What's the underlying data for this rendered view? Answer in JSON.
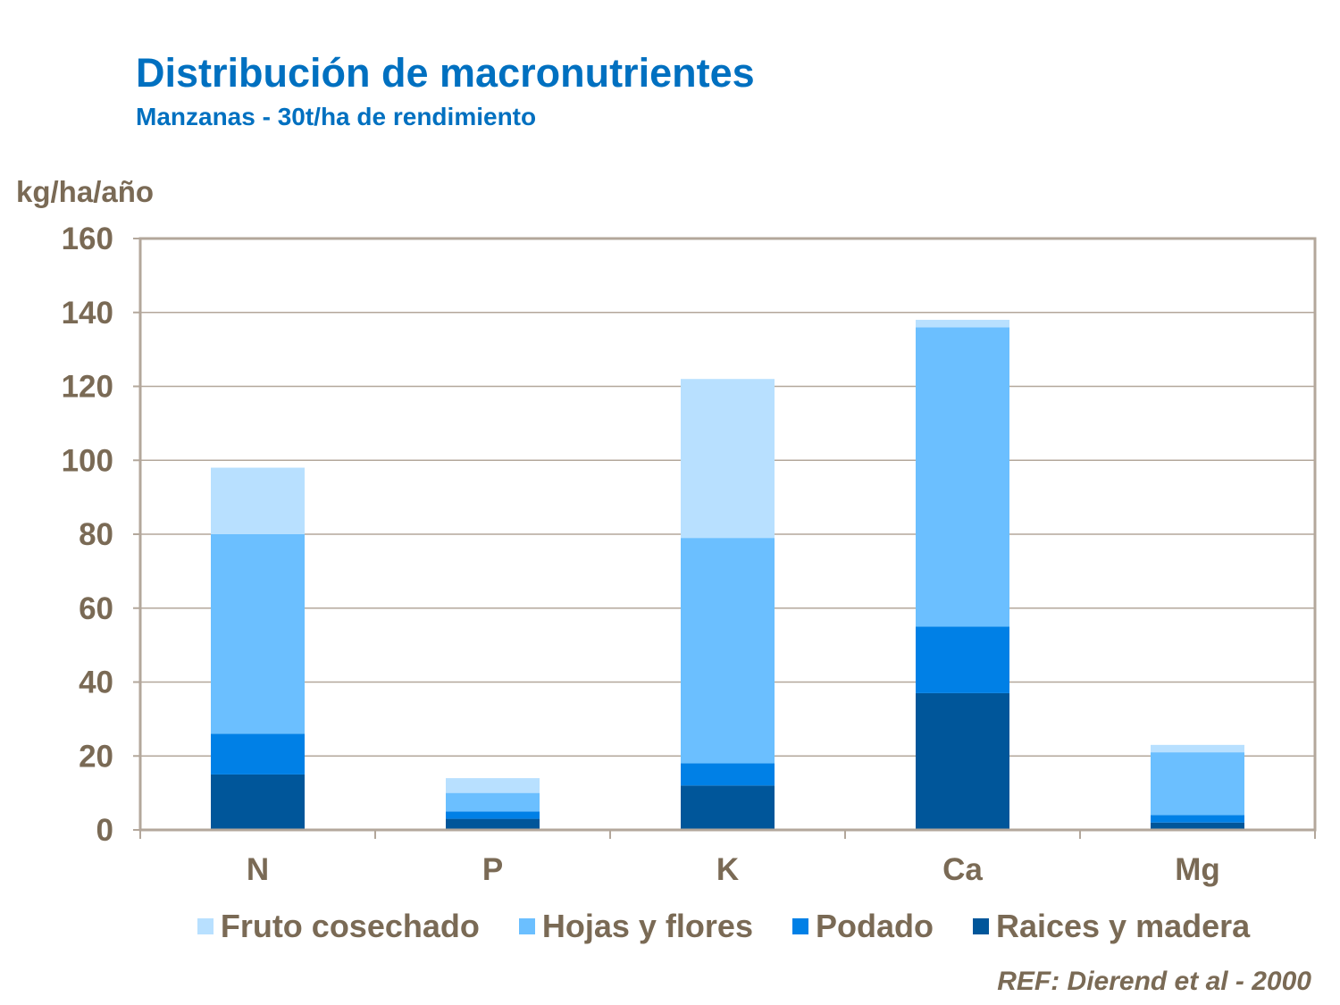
{
  "chart_data": {
    "type": "bar",
    "stacked": true,
    "title": "Distribución de macronutrientes",
    "subtitle": "Manzanas - 30t/ha de rendimiento",
    "ylabel": "kg/ha/año",
    "xlabel": "",
    "ylim": [
      0,
      160
    ],
    "yticks": [
      0,
      20,
      40,
      60,
      80,
      100,
      120,
      140,
      160
    ],
    "grid": true,
    "legend_position": "bottom",
    "categories": [
      "N",
      "P",
      "K",
      "Ca",
      "Mg"
    ],
    "series": [
      {
        "name": "Raices y madera",
        "color": "#00569a",
        "values": [
          15,
          3,
          12,
          37,
          2
        ]
      },
      {
        "name": "Podado",
        "color": "#0080e6",
        "values": [
          11,
          2,
          6,
          18,
          2
        ]
      },
      {
        "name": "Hojas y flores",
        "color": "#6bbfff",
        "values": [
          54,
          5,
          61,
          81,
          17
        ]
      },
      {
        "name": "Fruto cosechado",
        "color": "#b8e0ff",
        "values": [
          18,
          4,
          43,
          2,
          2
        ]
      }
    ],
    "legend_order": [
      "Fruto cosechado",
      "Hojas y flores",
      "Podado",
      "Raices y madera"
    ],
    "reference": "REF: Dierend et al - 2000"
  }
}
